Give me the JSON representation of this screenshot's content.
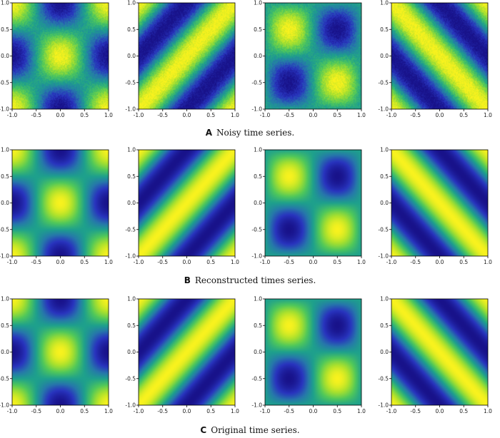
{
  "chart_data": [
    {
      "type": "heatmap",
      "caption_letter": "A",
      "caption_text": "Noisy time series.",
      "xlim": [
        -1.0,
        1.0
      ],
      "ylim": [
        -1.0,
        1.0
      ],
      "xticks": [
        "-1.0",
        "-0.5",
        "0.0",
        "0.5",
        "1.0"
      ],
      "yticks": [
        "1.0",
        "0.5",
        "0.0",
        "-0.5",
        "-1.0"
      ],
      "colormap": "viridis-like",
      "noisy": true,
      "panels": [
        {
          "pattern": "cos_x_cos_y"
        },
        {
          "pattern": "diagonal_band"
        },
        {
          "pattern": "sin_x_sin_y"
        },
        {
          "pattern": "anti_diagonal_band"
        }
      ]
    },
    {
      "type": "heatmap",
      "caption_letter": "B",
      "caption_text": "Reconstructed times series.",
      "xlim": [
        -1.0,
        1.0
      ],
      "ylim": [
        -1.0,
        1.0
      ],
      "xticks": [
        "-1.0",
        "-0.5",
        "0.0",
        "0.5",
        "1.0"
      ],
      "yticks": [
        "1.0",
        "0.5",
        "0.0",
        "-0.5",
        "-1.0"
      ],
      "colormap": "viridis-like",
      "noisy": false,
      "panels": [
        {
          "pattern": "cos_x_cos_y"
        },
        {
          "pattern": "diagonal_band"
        },
        {
          "pattern": "sin_x_sin_y"
        },
        {
          "pattern": "anti_diagonal_band"
        }
      ]
    },
    {
      "type": "heatmap",
      "caption_letter": "C",
      "caption_text": "Original time series.",
      "xlim": [
        -1.0,
        1.0
      ],
      "ylim": [
        -1.0,
        1.0
      ],
      "xticks": [
        "-1.0",
        "-0.5",
        "0.0",
        "0.5",
        "1.0"
      ],
      "yticks": [
        "1.0",
        "0.5",
        "0.0",
        "-0.5",
        "-1.0"
      ],
      "colormap": "viridis-like",
      "noisy": false,
      "panels": [
        {
          "pattern": "cos_x_cos_y"
        },
        {
          "pattern": "diagonal_band"
        },
        {
          "pattern": "sin_x_sin_y"
        },
        {
          "pattern": "anti_diagonal_band"
        }
      ]
    }
  ]
}
